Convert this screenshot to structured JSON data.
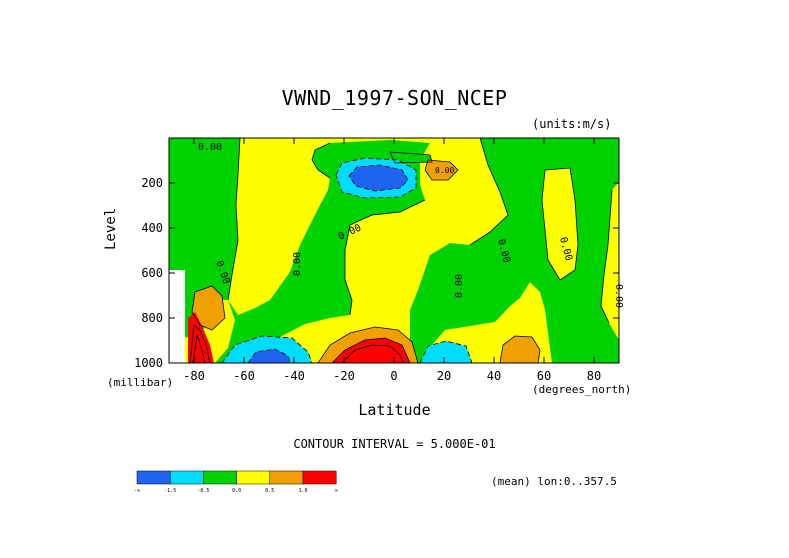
{
  "chart_data": {
    "type": "heatmap",
    "title": "VWND_1997-SON_NCEP",
    "units_label": "(units:m/s)",
    "ylabel": "Level",
    "yunit": "(millibar)",
    "xlabel": "Latitude",
    "xunit": "(degrees_north)",
    "xlim": [
      -90,
      90
    ],
    "ylim": [
      1000,
      0
    ],
    "x_ticks": [
      -80,
      -60,
      -40,
      -20,
      0,
      20,
      40,
      60,
      80
    ],
    "y_ticks": [
      200,
      400,
      600,
      800,
      1000
    ],
    "contour_interval": "CONTOUR INTERVAL = 5.000E-01",
    "mean_label": "(mean) lon:0..357.5",
    "contour_labels": [
      "0.00",
      "0.00",
      "0.00",
      "0.00",
      "0.00",
      "0.00",
      "0.00",
      "0.00",
      "0.00"
    ],
    "colorbar": {
      "colors": [
        "#1e64f0",
        "#00dcff",
        "#00d200",
        "#ffff00",
        "#f0a000",
        "#ff0000"
      ],
      "tick_labels": [
        "-∞",
        "-1.5",
        "-0.5",
        "0.0",
        "0.5",
        "1.0",
        "∞"
      ]
    }
  }
}
